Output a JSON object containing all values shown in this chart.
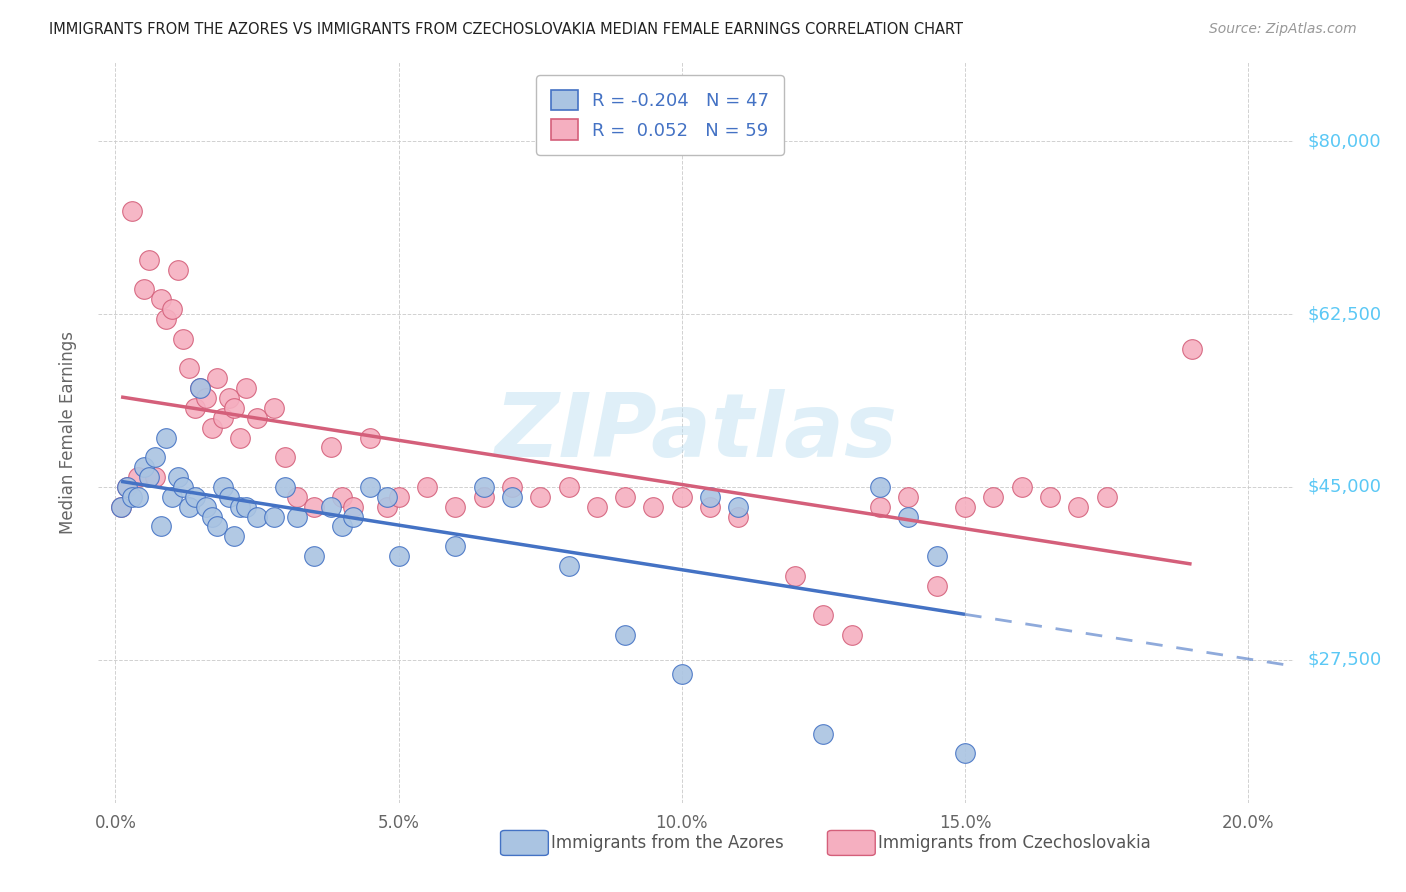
{
  "title": "IMMIGRANTS FROM THE AZORES VS IMMIGRANTS FROM CZECHOSLOVAKIA MEDIAN FEMALE EARNINGS CORRELATION CHART",
  "source": "Source: ZipAtlas.com",
  "ylabel": "Median Female Earnings",
  "ytick_labels": [
    "$27,500",
    "$45,000",
    "$62,500",
    "$80,000"
  ],
  "ytick_vals": [
    27500,
    45000,
    62500,
    80000
  ],
  "xlabel_ticks": [
    "0.0%",
    "5.0%",
    "10.0%",
    "15.0%",
    "20.0%"
  ],
  "xlabel_vals": [
    0.0,
    0.05,
    0.1,
    0.15,
    0.2
  ],
  "ylim": [
    13000,
    88000
  ],
  "xlim": [
    -0.003,
    0.208
  ],
  "watermark": "ZIPatlas",
  "color_azores": "#aac4e2",
  "color_czech": "#f5afc0",
  "line_color_azores": "#4472c4",
  "line_color_czech": "#d45f7a",
  "right_axis_color": "#5bc8f5",
  "legend_text_color": "#4472c4",
  "bottom_legend_color": "#555555",
  "azores_x": [
    0.001,
    0.002,
    0.003,
    0.004,
    0.005,
    0.006,
    0.007,
    0.008,
    0.009,
    0.01,
    0.011,
    0.012,
    0.013,
    0.014,
    0.015,
    0.016,
    0.017,
    0.018,
    0.019,
    0.02,
    0.021,
    0.022,
    0.023,
    0.025,
    0.028,
    0.03,
    0.032,
    0.035,
    0.038,
    0.04,
    0.042,
    0.045,
    0.048,
    0.05,
    0.06,
    0.065,
    0.07,
    0.08,
    0.09,
    0.1,
    0.105,
    0.11,
    0.125,
    0.135,
    0.14,
    0.145,
    0.15
  ],
  "azores_y": [
    43000,
    45000,
    44000,
    44000,
    47000,
    46000,
    48000,
    41000,
    50000,
    44000,
    46000,
    45000,
    43000,
    44000,
    55000,
    43000,
    42000,
    41000,
    45000,
    44000,
    40000,
    43000,
    43000,
    42000,
    42000,
    45000,
    42000,
    38000,
    43000,
    41000,
    42000,
    45000,
    44000,
    38000,
    39000,
    45000,
    44000,
    37000,
    30000,
    26000,
    44000,
    43000,
    20000,
    45000,
    42000,
    38000,
    18000
  ],
  "czech_x": [
    0.001,
    0.002,
    0.003,
    0.004,
    0.005,
    0.006,
    0.007,
    0.008,
    0.009,
    0.01,
    0.011,
    0.012,
    0.013,
    0.014,
    0.015,
    0.016,
    0.017,
    0.018,
    0.019,
    0.02,
    0.021,
    0.022,
    0.023,
    0.025,
    0.028,
    0.03,
    0.032,
    0.035,
    0.038,
    0.04,
    0.042,
    0.045,
    0.048,
    0.05,
    0.055,
    0.06,
    0.065,
    0.07,
    0.075,
    0.08,
    0.085,
    0.09,
    0.095,
    0.1,
    0.105,
    0.11,
    0.12,
    0.125,
    0.13,
    0.135,
    0.14,
    0.145,
    0.15,
    0.155,
    0.16,
    0.165,
    0.17,
    0.175,
    0.19
  ],
  "czech_y": [
    43000,
    45000,
    73000,
    46000,
    65000,
    68000,
    46000,
    64000,
    62000,
    63000,
    67000,
    60000,
    57000,
    53000,
    55000,
    54000,
    51000,
    56000,
    52000,
    54000,
    53000,
    50000,
    55000,
    52000,
    53000,
    48000,
    44000,
    43000,
    49000,
    44000,
    43000,
    50000,
    43000,
    44000,
    45000,
    43000,
    44000,
    45000,
    44000,
    45000,
    43000,
    44000,
    43000,
    44000,
    43000,
    42000,
    36000,
    32000,
    30000,
    43000,
    44000,
    35000,
    43000,
    44000,
    45000,
    44000,
    43000,
    44000,
    59000
  ]
}
